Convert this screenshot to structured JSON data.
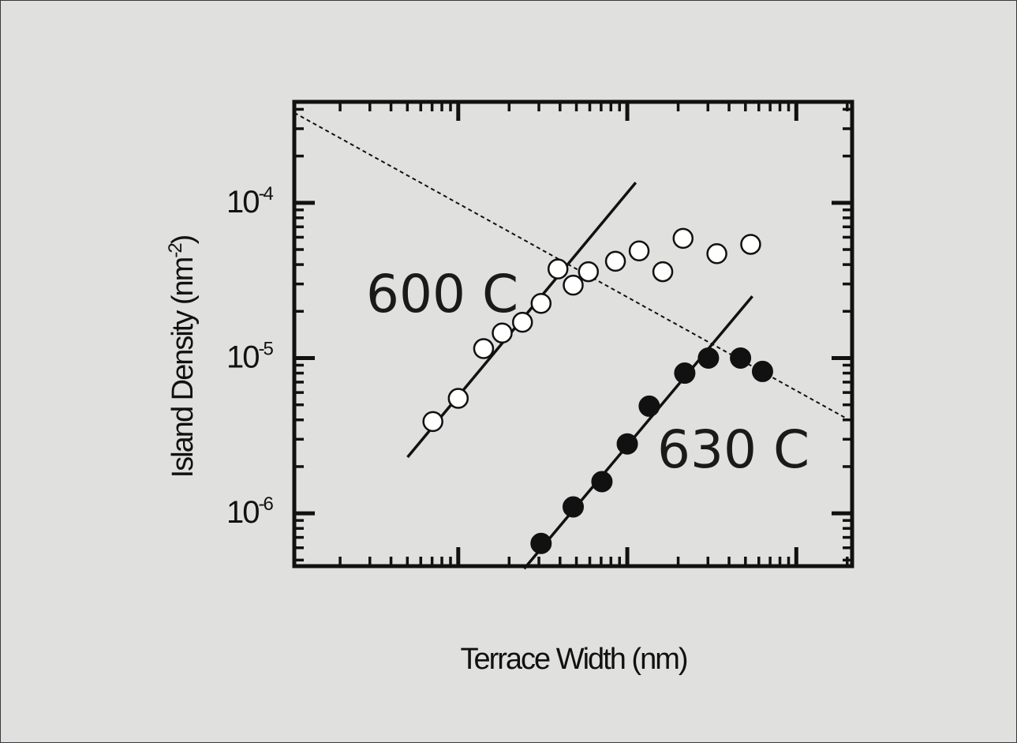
{
  "chart_data": {
    "type": "scatter",
    "title": "",
    "xlabel": "Terrace Width (nm)",
    "ylabel": "Island Density (nm",
    "ylabel_exponent": "-2",
    "ylabel_close": ")",
    "x_scale": "log",
    "y_scale": "log",
    "xlim_decades": [
      -0.97,
      2.33
    ],
    "ylim_decades": [
      -6.34,
      -3.35
    ],
    "y_ticks": [
      {
        "value": 1e-06,
        "base": "10",
        "exp": "-6"
      },
      {
        "value": 1e-05,
        "base": "10",
        "exp": "-5"
      },
      {
        "value": 0.0001,
        "base": "10",
        "exp": "-4"
      }
    ],
    "x_tick_labels_shown": false,
    "grid": false,
    "series": [
      {
        "name": "600 C",
        "marker": "open-circle",
        "x_decades": [
          -0.15,
          0.0,
          0.15,
          0.26,
          0.38,
          0.49,
          0.59,
          0.68,
          0.77,
          0.93,
          1.07,
          1.21,
          1.33,
          1.53,
          1.73
        ],
        "y": [
          3.9e-06,
          5.5e-06,
          1.15e-05,
          1.45e-05,
          1.7e-05,
          2.25e-05,
          3.75e-05,
          2.95e-05,
          3.6e-05,
          4.2e-05,
          4.9e-05,
          3.6e-05,
          5.9e-05,
          4.7e-05,
          5.4e-05
        ],
        "fit": {
          "x_decades": [
            -0.3,
            1.05
          ],
          "y": [
            2.3e-06,
            0.000135
          ]
        }
      },
      {
        "name": "630 C",
        "marker": "filled-circle",
        "x_decades": [
          0.49,
          0.68,
          0.85,
          1.0,
          1.13,
          1.34,
          1.48,
          1.67,
          1.8
        ],
        "y": [
          6.4e-07,
          1.1e-06,
          1.6e-06,
          2.8e-06,
          4.9e-06,
          8e-06,
          1e-05,
          1e-05,
          8.2e-06
        ],
        "fit": {
          "x_decades": [
            0.39,
            1.74
          ],
          "y": [
            4.4e-07,
            2.5e-05
          ]
        }
      }
    ],
    "reference_line": {
      "style": "dotted",
      "x_decades": [
        -0.97,
        2.33
      ],
      "y": [
        0.00038,
        3.9e-06
      ]
    }
  }
}
